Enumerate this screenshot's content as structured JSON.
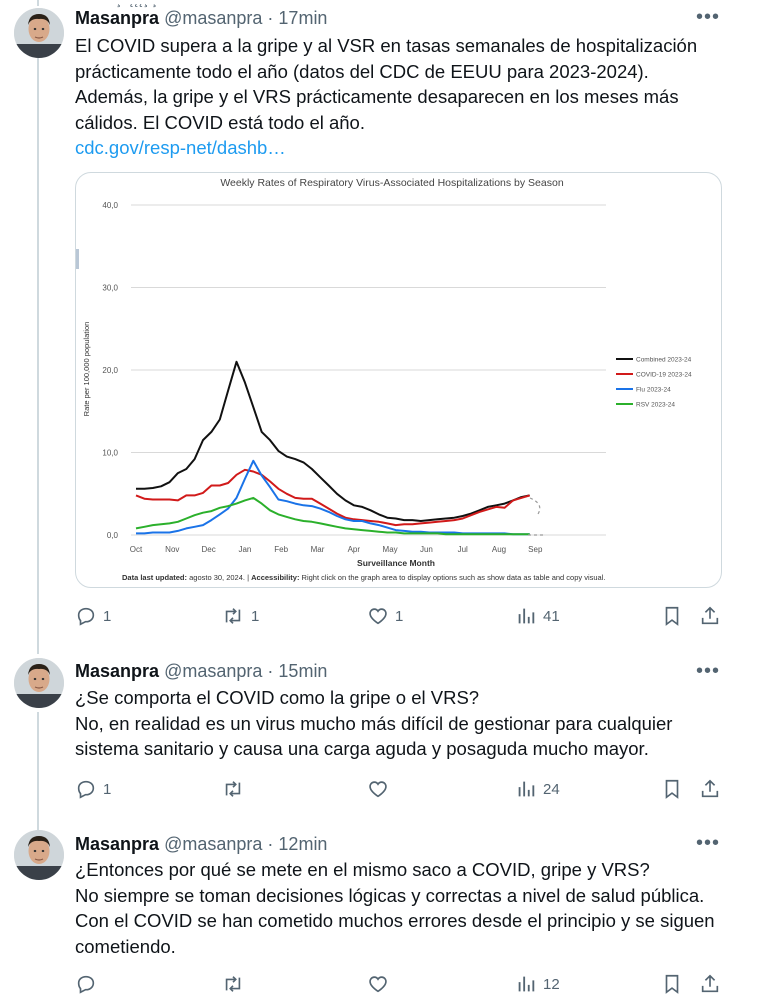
{
  "top_fragment": "^¸´ ˛˛˛¸ ¸",
  "tweets": [
    {
      "name": "Masanpra",
      "handle": "@masanpra",
      "time": "17min",
      "lines": [
        "El COVID supera a la gripe y al VSR en tasas semanales de hospitalización",
        "prácticamente todo el año (datos del CDC de EEUU para 2023-2024).",
        "Además, la gripe y el VRS prácticamente desaparecen en los meses más",
        "cálidos. El COVID está todo el año."
      ],
      "link": "cdc.gov/resp-net/dashb…",
      "replies": "1",
      "retweets": "1",
      "likes": "1",
      "views": "41"
    },
    {
      "name": "Masanpra",
      "handle": "@masanpra",
      "time": "15min",
      "lines": [
        "¿Se comporta el COVID como la gripe o el VRS?",
        "No, en realidad es un virus mucho más difícil de gestionar para cualquier",
        "sistema sanitario y causa una carga aguda y posaguda mucho mayor."
      ],
      "replies": "1",
      "retweets": "",
      "likes": "",
      "views": "24"
    },
    {
      "name": "Masanpra",
      "handle": "@masanpra",
      "time": "12min",
      "lines": [
        "¿Entonces por qué se mete en el mismo saco a COVID, gripe y VRS?",
        "No siempre se toman decisiones lógicas y correctas a nivel de salud pública.",
        "Con el COVID se han cometido muchos errores desde el principio y se siguen",
        "cometiendo."
      ],
      "replies": "",
      "retweets": "",
      "likes": "",
      "views": "12"
    }
  ],
  "colors": {
    "link": "#1d9bf0",
    "muted": "#536471",
    "divider": "#eff3f4"
  },
  "icons": [
    "avatar",
    "more-icon",
    "reply-icon",
    "retweet-icon",
    "like-icon",
    "views-icon",
    "bookmark-icon",
    "share-icon"
  ],
  "chart_data": {
    "type": "line",
    "title": "Weekly Rates of Respiratory Virus-Associated Hospitalizations by Season",
    "xlabel": "Surveillance Month",
    "ylabel": "Rate per 100,000 population",
    "ylim": [
      0,
      40
    ],
    "yticks": [
      "0,0",
      "10,0",
      "20,0",
      "30,0",
      "40,0"
    ],
    "xticks": [
      "Oct",
      "Nov",
      "Dec",
      "Jan",
      "Feb",
      "Mar",
      "Apr",
      "May",
      "Jun",
      "Jul",
      "Aug",
      "Sep"
    ],
    "grid": true,
    "legend_position": "right",
    "x_week_start": 0,
    "series": [
      {
        "name": "Combined 2023-24",
        "color": "#111111",
        "values": [
          5.6,
          5.6,
          5.7,
          5.9,
          6.4,
          7.5,
          8.0,
          9.2,
          11.5,
          12.5,
          14.0,
          17.5,
          21.0,
          18.5,
          15.5,
          12.5,
          11.5,
          10.2,
          9.5,
          9.2,
          8.8,
          8.0,
          7.0,
          6.0,
          5.0,
          4.2,
          3.6,
          3.4,
          3.0,
          2.5,
          2.1,
          2.0,
          1.8,
          1.8,
          1.7,
          1.8,
          1.9,
          2.0,
          2.1,
          2.3,
          2.6,
          3.0,
          3.4,
          3.6,
          3.8,
          4.2,
          4.6,
          4.8
        ]
      },
      {
        "name": "COVID-19 2023-24",
        "color": "#d11a1a",
        "values": [
          4.8,
          4.4,
          4.3,
          4.3,
          4.3,
          4.2,
          4.8,
          4.8,
          5.1,
          6.0,
          6.0,
          6.3,
          7.3,
          7.9,
          7.7,
          7.3,
          6.5,
          5.6,
          5.0,
          4.5,
          4.4,
          4.4,
          3.8,
          3.2,
          2.6,
          2.1,
          1.9,
          1.8,
          1.7,
          1.6,
          1.4,
          1.2,
          1.3,
          1.3,
          1.4,
          1.5,
          1.6,
          1.7,
          1.8,
          2.0,
          2.4,
          2.8,
          3.1,
          3.4,
          3.3,
          4.2,
          4.5,
          4.8
        ]
      },
      {
        "name": "Flu 2023-24",
        "color": "#1a73e8",
        "values": [
          0.2,
          0.2,
          0.3,
          0.3,
          0.3,
          0.5,
          0.8,
          1.0,
          1.2,
          1.8,
          2.5,
          3.2,
          4.5,
          6.8,
          9.0,
          7.2,
          5.8,
          4.3,
          4.1,
          3.8,
          3.6,
          3.5,
          3.2,
          2.8,
          2.3,
          1.9,
          1.7,
          1.7,
          1.4,
          1.2,
          0.9,
          0.6,
          0.5,
          0.4,
          0.4,
          0.3,
          0.3,
          0.3,
          0.3,
          0.2,
          0.2,
          0.2,
          0.2,
          0.2,
          0.2,
          0.1,
          0.1,
          0.1
        ]
      },
      {
        "name": "RSV 2023-24",
        "color": "#2bb02b",
        "values": [
          0.8,
          1.0,
          1.2,
          1.3,
          1.4,
          1.6,
          2.0,
          2.4,
          2.7,
          2.9,
          3.3,
          3.5,
          3.8,
          4.2,
          4.5,
          3.8,
          3.0,
          2.5,
          2.2,
          1.9,
          1.7,
          1.6,
          1.4,
          1.2,
          1.0,
          0.8,
          0.7,
          0.6,
          0.5,
          0.4,
          0.3,
          0.3,
          0.2,
          0.2,
          0.2,
          0.2,
          0.2,
          0.1,
          0.1,
          0.1,
          0.1,
          0.1,
          0.1,
          0.1,
          0.1,
          0.1,
          0.1,
          0.1
        ]
      }
    ],
    "footer_label_1": "Data last updated:",
    "footer_value_1": " agosto 30, 2024. | ",
    "footer_label_2": "Accessibility:",
    "footer_value_2": " Right click on the graph area to display options such as show data as table and copy visual."
  }
}
